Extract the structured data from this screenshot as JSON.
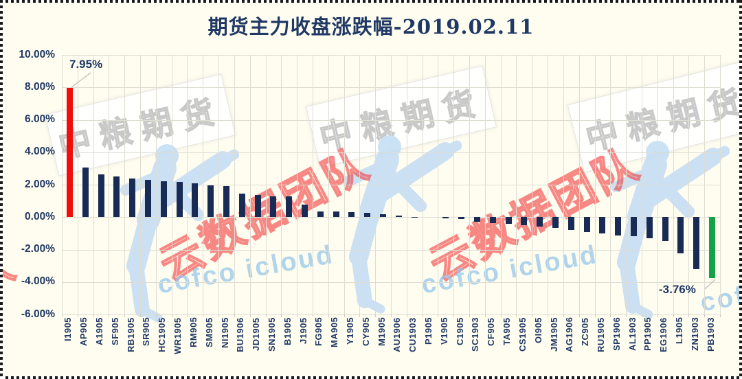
{
  "title": "期货主力收盘涨跌幅-2019.02.11",
  "annotations": {
    "max_label": "7.95%",
    "min_label": "-3.76%"
  },
  "watermarks": {
    "banner_text": "中粮期货",
    "team_text": "云数据团队",
    "cloud_text": "cofco icloud"
  },
  "colors": {
    "title_text": "#1F3864",
    "axis_text": "#1F3864",
    "bar_default": "#172B54",
    "bar_max": "#F20D0D",
    "bar_min": "#13A24A",
    "gridline": "#DDDDD4",
    "background": "#FFFDF0",
    "watermark_red": "#F23E3E",
    "watermark_blue": "#94C5E9"
  },
  "y_axis": {
    "ticks": [
      "10.00%",
      "8.00%",
      "6.00%",
      "4.00%",
      "2.00%",
      "0.00%",
      "-2.00%",
      "-4.00%",
      "-6.00%"
    ],
    "max": 10,
    "min": -6
  },
  "chart_data": {
    "type": "bar",
    "title": "期货主力收盘涨跌幅-2019.02.11",
    "xlabel": "",
    "ylabel": "",
    "ylim": [
      -6,
      10
    ],
    "grid": true,
    "legend": false,
    "categories": [
      "I1905",
      "AP905",
      "A1905",
      "SF905",
      "RB1905",
      "SR905",
      "HC1905",
      "WR1905",
      "RM905",
      "SM905",
      "NI1905",
      "BU1906",
      "JD1905",
      "SN1905",
      "B1905",
      "J1905",
      "FG905",
      "MA905",
      "Y1905",
      "CY905",
      "M1905",
      "AU1906",
      "CU1903",
      "P1905",
      "V1905",
      "C1905",
      "SC1903",
      "CF905",
      "TA905",
      "CS1905",
      "OI905",
      "JM1905",
      "AG1906",
      "ZC905",
      "RU1905",
      "SP1906",
      "AL1903",
      "PP1905",
      "EG1906",
      "L1905",
      "ZN1903",
      "PB1903"
    ],
    "values": [
      7.95,
      3.04,
      2.64,
      2.52,
      2.4,
      2.28,
      2.22,
      2.16,
      2.1,
      1.97,
      1.92,
      1.46,
      1.35,
      1.3,
      1.26,
      0.78,
      0.36,
      0.33,
      0.31,
      0.28,
      0.16,
      0.09,
      0.03,
      0.0,
      -0.06,
      -0.11,
      -0.3,
      -0.38,
      -0.42,
      -0.48,
      -0.6,
      -0.68,
      -0.78,
      -0.92,
      -1.02,
      -1.15,
      -1.18,
      -1.32,
      -1.45,
      -2.23,
      -3.22,
      -3.76
    ],
    "bar_color_overrides": {
      "0": "#F20D0D",
      "41": "#13A24A"
    },
    "annotated_points": [
      {
        "category": "I1905",
        "label": "7.95%"
      },
      {
        "category": "PB1903",
        "label": "-3.76%"
      }
    ]
  }
}
